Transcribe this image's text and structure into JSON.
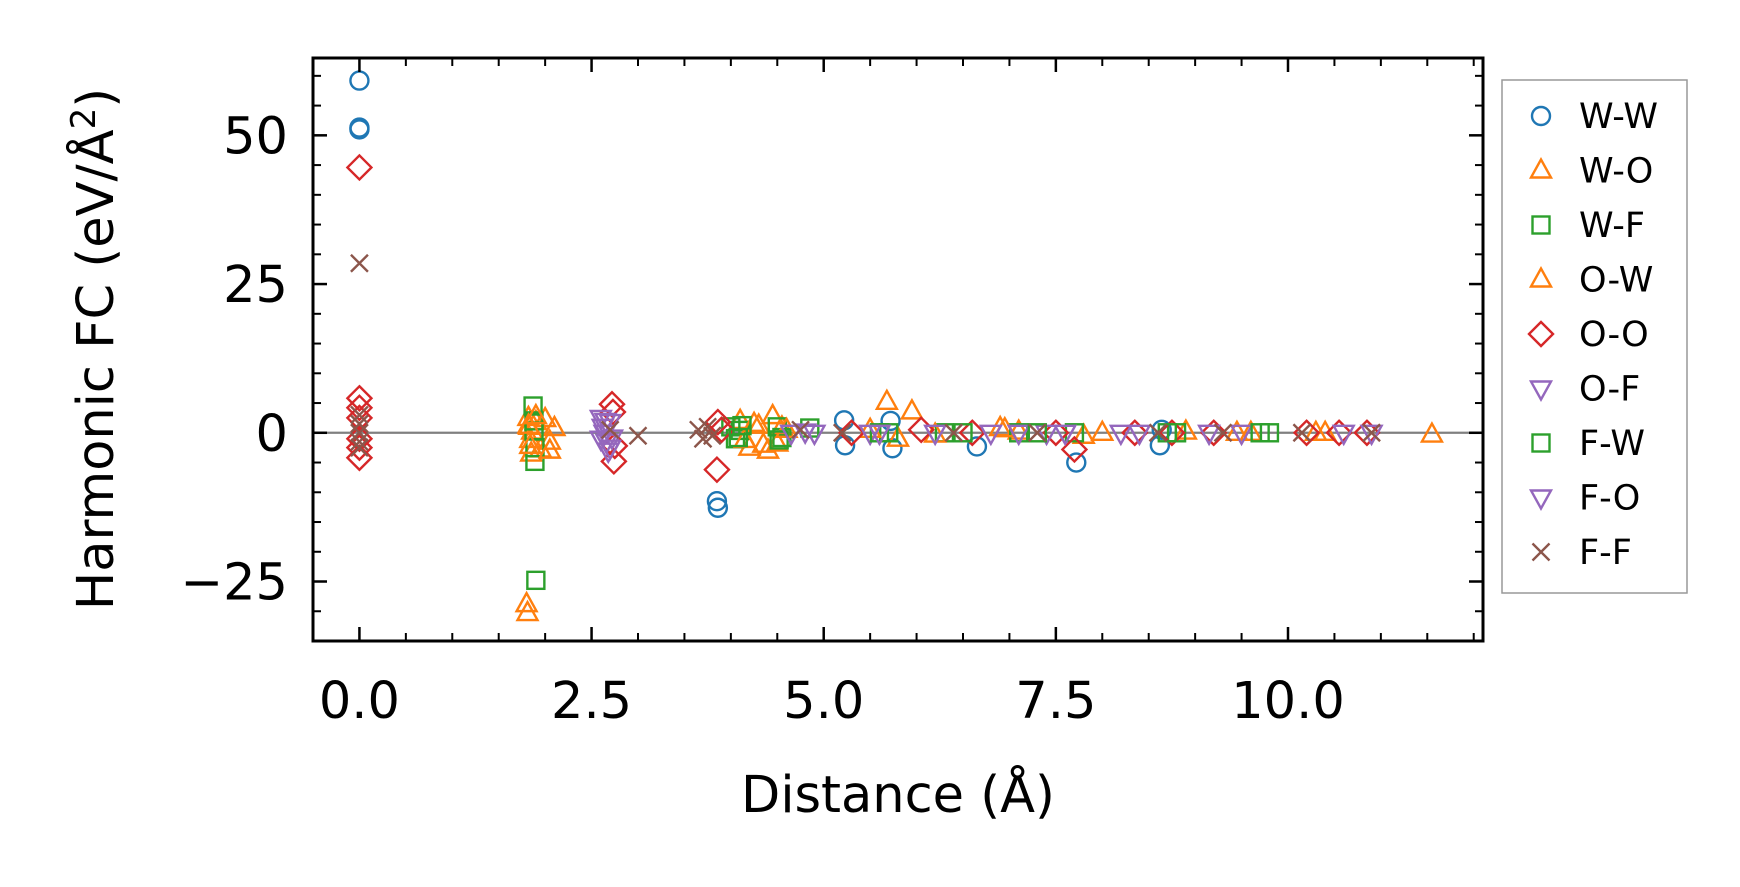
{
  "chart_data": {
    "type": "scatter",
    "title": "",
    "xlabel": "Distance (Å)",
    "ylabel_main": "Harmonic FC (eV/Å",
    "ylabel_sup": "2",
    "ylabel_close": ")",
    "xlim": [
      -0.5,
      12.1
    ],
    "ylim": [
      -35,
      63
    ],
    "xticks": [
      0.0,
      2.5,
      5.0,
      7.5,
      10.0
    ],
    "xtick_labels": [
      "0.0",
      "2.5",
      "5.0",
      "7.5",
      "10.0"
    ],
    "yticks": [
      -25,
      0,
      25,
      50
    ],
    "ytick_labels": [
      "−25",
      "0",
      "25",
      "50"
    ],
    "reference_line_y": 0,
    "legend_position": "outside-right",
    "series": [
      {
        "name": "W-W",
        "marker": "circle",
        "color": "#1f77b4",
        "points": [
          [
            0.0,
            59.2
          ],
          [
            0.0,
            51.3
          ],
          [
            0.0,
            51.0
          ],
          [
            3.85,
            -11.5
          ],
          [
            3.86,
            -12.6
          ],
          [
            5.22,
            2.1
          ],
          [
            5.23,
            -2.1
          ],
          [
            5.72,
            2.0
          ],
          [
            5.74,
            -2.6
          ],
          [
            6.65,
            -2.3
          ],
          [
            7.72,
            -5.0
          ],
          [
            8.62,
            -2.1
          ],
          [
            8.64,
            0.5
          ]
        ]
      },
      {
        "name": "W-O",
        "marker": "triangle-up",
        "color": "#ff7f0e",
        "points": [
          [
            1.82,
            2.5
          ],
          [
            1.83,
            1.0
          ],
          [
            1.84,
            -1.2
          ],
          [
            1.85,
            -3.5
          ],
          [
            1.86,
            0.2
          ],
          [
            1.9,
            1.8
          ],
          [
            1.95,
            -2.8
          ],
          [
            2.0,
            2.3
          ],
          [
            2.05,
            -1.5
          ],
          [
            2.1,
            0.8
          ],
          [
            4.1,
            2.0
          ],
          [
            4.2,
            -2.5
          ],
          [
            4.3,
            1.2
          ],
          [
            4.4,
            -3.0
          ],
          [
            4.45,
            2.8
          ],
          [
            4.5,
            -1.8
          ],
          [
            4.55,
            0.9
          ],
          [
            5.68,
            5.2
          ],
          [
            5.95,
            3.6
          ],
          [
            5.8,
            -1.0
          ],
          [
            6.9,
            0.8
          ],
          [
            7.1,
            0.2
          ],
          [
            7.8,
            -0.5
          ],
          [
            8.9,
            0.2
          ],
          [
            9.6,
            0.0
          ],
          [
            10.3,
            0.0
          ],
          [
            11.55,
            -0.3
          ]
        ]
      },
      {
        "name": "W-F",
        "marker": "square",
        "color": "#2ca02c",
        "points": [
          [
            1.87,
            4.5
          ],
          [
            1.88,
            2.0
          ],
          [
            1.88,
            0.3
          ],
          [
            1.89,
            -2.5
          ],
          [
            1.89,
            -4.8
          ],
          [
            1.9,
            -24.8
          ],
          [
            4.0,
            1.0
          ],
          [
            4.05,
            -1.0
          ],
          [
            4.1,
            0.4
          ],
          [
            4.5,
            1.0
          ],
          [
            4.55,
            -0.8
          ],
          [
            4.85,
            0.8
          ],
          [
            5.7,
            0.0
          ],
          [
            6.3,
            0.0
          ],
          [
            7.1,
            0.0
          ],
          [
            7.7,
            0.0
          ],
          [
            8.8,
            0.0
          ],
          [
            9.8,
            0.0
          ]
        ]
      },
      {
        "name": "O-W",
        "marker": "triangle-up",
        "color": "#ff7f0e",
        "points": [
          [
            1.8,
            -28.8
          ],
          [
            1.81,
            -30.3
          ],
          [
            1.82,
            1.2
          ],
          [
            1.84,
            -2.2
          ],
          [
            1.9,
            2.8
          ],
          [
            2.05,
            -3.0
          ],
          [
            4.15,
            -1.2
          ],
          [
            4.25,
            1.5
          ],
          [
            4.35,
            -2.0
          ],
          [
            4.6,
            0.5
          ],
          [
            5.5,
            0.5
          ],
          [
            6.2,
            -0.3
          ],
          [
            6.95,
            0.6
          ],
          [
            8.0,
            0.0
          ],
          [
            9.45,
            0.0
          ],
          [
            10.4,
            0.0
          ]
        ]
      },
      {
        "name": "O-O",
        "marker": "diamond",
        "color": "#d62728",
        "points": [
          [
            0.0,
            44.6
          ],
          [
            0.0,
            5.8
          ],
          [
            0.0,
            4.2
          ],
          [
            0.0,
            2.5
          ],
          [
            0.0,
            -1.0
          ],
          [
            0.0,
            -2.5
          ],
          [
            0.0,
            -4.2
          ],
          [
            2.72,
            4.8
          ],
          [
            2.73,
            3.5
          ],
          [
            2.74,
            -4.8
          ],
          [
            2.75,
            -2.2
          ],
          [
            3.85,
            -6.2
          ],
          [
            3.86,
            1.8
          ],
          [
            3.9,
            0.5
          ],
          [
            5.3,
            0.0
          ],
          [
            6.05,
            0.5
          ],
          [
            6.6,
            0.0
          ],
          [
            7.5,
            0.0
          ],
          [
            7.7,
            -2.8
          ],
          [
            8.35,
            0.0
          ],
          [
            8.75,
            0.0
          ],
          [
            9.2,
            0.0
          ],
          [
            10.2,
            0.0
          ],
          [
            10.55,
            0.0
          ],
          [
            10.85,
            0.0
          ]
        ]
      },
      {
        "name": "O-F",
        "marker": "triangle-down",
        "color": "#9467bd",
        "points": [
          [
            2.6,
            2.5
          ],
          [
            2.62,
            1.0
          ],
          [
            2.64,
            0.0
          ],
          [
            2.66,
            -1.5
          ],
          [
            2.68,
            -3.0
          ],
          [
            2.7,
            1.8
          ],
          [
            2.72,
            -0.8
          ],
          [
            4.8,
            0.2
          ],
          [
            5.5,
            0.0
          ],
          [
            6.2,
            0.0
          ],
          [
            7.1,
            0.0
          ],
          [
            7.4,
            0.0
          ],
          [
            8.4,
            0.0
          ],
          [
            9.5,
            0.0
          ],
          [
            10.6,
            0.0
          ]
        ]
      },
      {
        "name": "F-W",
        "marker": "square",
        "color": "#2ca02c",
        "points": [
          [
            4.08,
            -0.8
          ],
          [
            4.12,
            1.2
          ],
          [
            4.52,
            -1.2
          ],
          [
            5.6,
            0.0
          ],
          [
            6.5,
            0.0
          ],
          [
            7.3,
            0.0
          ],
          [
            8.7,
            0.0
          ],
          [
            9.7,
            0.0
          ]
        ]
      },
      {
        "name": "F-O",
        "marker": "triangle-down",
        "color": "#9467bd",
        "points": [
          [
            2.6,
            -1.0
          ],
          [
            2.65,
            2.0
          ],
          [
            2.7,
            -2.5
          ],
          [
            4.65,
            0.0
          ],
          [
            4.9,
            0.0
          ],
          [
            5.6,
            0.0
          ],
          [
            6.8,
            0.0
          ],
          [
            7.6,
            0.0
          ],
          [
            8.2,
            0.0
          ],
          [
            9.15,
            0.0
          ],
          [
            10.9,
            0.0
          ]
        ]
      },
      {
        "name": "F-F",
        "marker": "x",
        "color": "#8c564b",
        "points": [
          [
            0.0,
            28.5
          ],
          [
            0.0,
            3.0
          ],
          [
            0.0,
            1.5
          ],
          [
            0.0,
            0.0
          ],
          [
            0.0,
            -1.5
          ],
          [
            0.0,
            -2.5
          ],
          [
            2.7,
            0.5
          ],
          [
            3.0,
            -0.5
          ],
          [
            3.65,
            0.5
          ],
          [
            3.7,
            -1.0
          ],
          [
            3.75,
            1.0
          ],
          [
            3.8,
            -0.5
          ],
          [
            4.75,
            0.5
          ],
          [
            5.2,
            0.0
          ],
          [
            6.4,
            0.0
          ],
          [
            7.3,
            0.0
          ],
          [
            8.6,
            0.0
          ],
          [
            9.3,
            0.0
          ],
          [
            10.15,
            0.0
          ],
          [
            10.9,
            0.0
          ]
        ]
      }
    ]
  }
}
